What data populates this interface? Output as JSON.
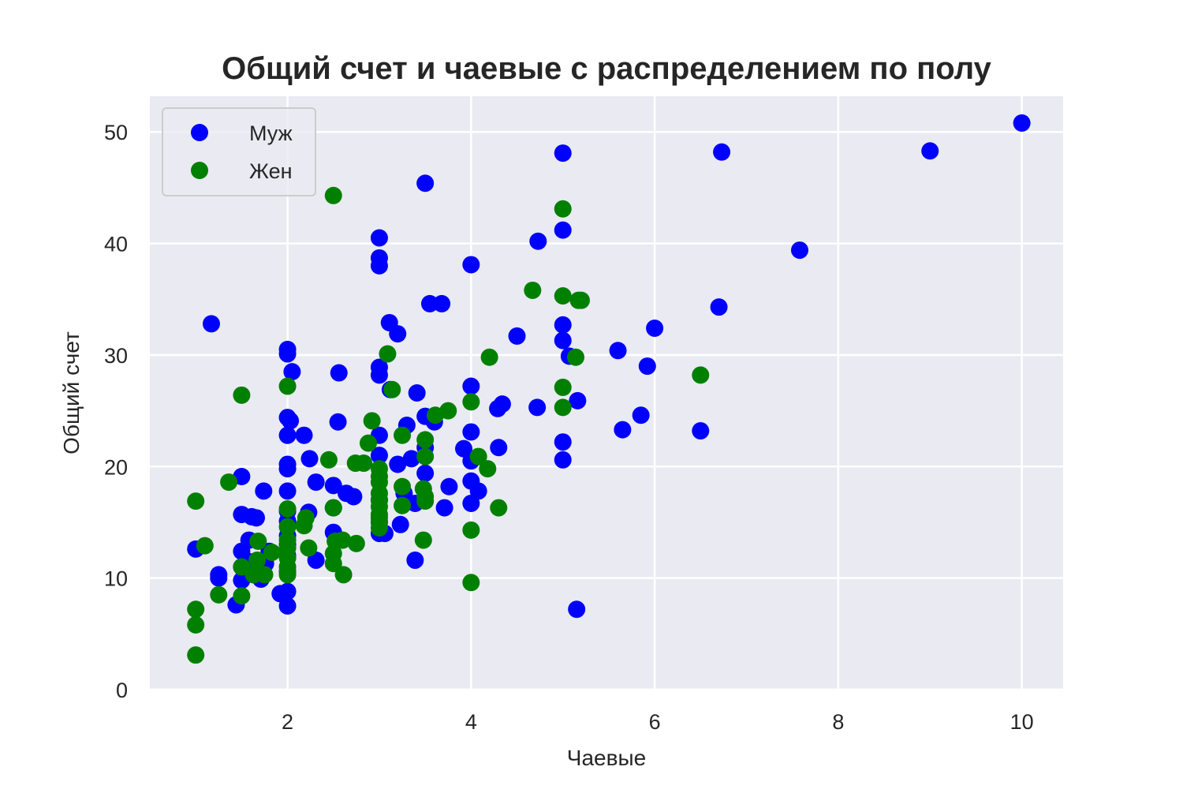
{
  "chart_data": {
    "type": "scatter",
    "title": "Общий счет и чаевые с распределением по полу",
    "xlabel": "Чаевые",
    "ylabel": "Общий счет",
    "xlim": [
      0.5,
      10.45
    ],
    "ylim": [
      0,
      53.2
    ],
    "xticks": [
      2,
      4,
      6,
      8,
      10
    ],
    "yticks": [
      0,
      10,
      20,
      30,
      40,
      50
    ],
    "grid": true,
    "legend_position": "top-left",
    "series": [
      {
        "name": "Муж",
        "color": "#0000ff",
        "points": [
          [
            10.0,
            50.8
          ],
          [
            9.0,
            48.3
          ],
          [
            6.73,
            48.2
          ],
          [
            5.0,
            48.1
          ],
          [
            3.5,
            45.4
          ],
          [
            7.58,
            39.4
          ],
          [
            4.73,
            40.2
          ],
          [
            5.0,
            41.2
          ],
          [
            3.0,
            40.5
          ],
          [
            3.0,
            38.7
          ],
          [
            3.0,
            38.0
          ],
          [
            4.0,
            38.1
          ],
          [
            3.55,
            34.6
          ],
          [
            3.68,
            34.6
          ],
          [
            6.7,
            34.3
          ],
          [
            1.17,
            32.8
          ],
          [
            3.11,
            32.9
          ],
          [
            5.0,
            32.7
          ],
          [
            6.0,
            32.4
          ],
          [
            3.2,
            31.9
          ],
          [
            4.5,
            31.7
          ],
          [
            5.0,
            31.3
          ],
          [
            5.6,
            30.4
          ],
          [
            2.0,
            30.5
          ],
          [
            2.0,
            30.1
          ],
          [
            5.07,
            29.9
          ],
          [
            5.92,
            29.0
          ],
          [
            3.0,
            28.9
          ],
          [
            2.05,
            28.5
          ],
          [
            2.56,
            28.4
          ],
          [
            3.0,
            28.2
          ],
          [
            4.0,
            27.2
          ],
          [
            3.12,
            26.9
          ],
          [
            3.41,
            26.6
          ],
          [
            5.16,
            25.9
          ],
          [
            4.34,
            25.6
          ],
          [
            4.29,
            25.2
          ],
          [
            4.72,
            25.3
          ],
          [
            5.85,
            24.6
          ],
          [
            3.5,
            24.5
          ],
          [
            2.0,
            24.4
          ],
          [
            2.03,
            24.1
          ],
          [
            2.55,
            24.0
          ],
          [
            3.6,
            24.0
          ],
          [
            3.3,
            23.7
          ],
          [
            5.65,
            23.3
          ],
          [
            6.5,
            23.2
          ],
          [
            4.0,
            23.1
          ],
          [
            2.0,
            22.8
          ],
          [
            3.0,
            22.8
          ],
          [
            2.18,
            22.8
          ],
          [
            5.0,
            22.2
          ],
          [
            3.5,
            21.7
          ],
          [
            3.92,
            21.6
          ],
          [
            4.3,
            21.7
          ],
          [
            3.0,
            21.0
          ],
          [
            2.24,
            20.7
          ],
          [
            3.35,
            20.7
          ],
          [
            5.0,
            20.6
          ],
          [
            4.0,
            20.5
          ],
          [
            2.0,
            20.2
          ],
          [
            2.0,
            19.8
          ],
          [
            3.2,
            20.2
          ],
          [
            3.5,
            19.4
          ],
          [
            1.5,
            19.1
          ],
          [
            2.31,
            18.6
          ],
          [
            4.0,
            18.7
          ],
          [
            3.76,
            18.2
          ],
          [
            2.5,
            18.3
          ],
          [
            1.74,
            17.8
          ],
          [
            2.0,
            17.8
          ],
          [
            4.08,
            17.8
          ],
          [
            2.64,
            17.6
          ],
          [
            2.72,
            17.3
          ],
          [
            3.27,
            17.6
          ],
          [
            3.0,
            17.0
          ],
          [
            4.0,
            16.7
          ],
          [
            3.39,
            16.7
          ],
          [
            3.71,
            16.3
          ],
          [
            2.0,
            16.0
          ],
          [
            2.23,
            15.9
          ],
          [
            2.5,
            16.3
          ],
          [
            1.5,
            15.7
          ],
          [
            1.61,
            15.5
          ],
          [
            1.66,
            15.4
          ],
          [
            2.0,
            15.1
          ],
          [
            3.0,
            15.0
          ],
          [
            3.23,
            14.8
          ],
          [
            2.5,
            14.1
          ],
          [
            3.0,
            14.0
          ],
          [
            3.06,
            14.0
          ],
          [
            2.0,
            13.8
          ],
          [
            1.58,
            13.4
          ],
          [
            2.0,
            13.0
          ],
          [
            1.8,
            12.4
          ],
          [
            1.5,
            12.4
          ],
          [
            2.0,
            12.0
          ],
          [
            1.0,
            12.6
          ],
          [
            2.31,
            11.6
          ],
          [
            1.57,
            11.5
          ],
          [
            1.76,
            11.3
          ],
          [
            3.39,
            11.6
          ],
          [
            1.5,
            11.0
          ],
          [
            2.0,
            10.6
          ],
          [
            1.25,
            10.3
          ],
          [
            1.25,
            10.0
          ],
          [
            1.71,
            9.9
          ],
          [
            1.5,
            9.8
          ],
          [
            1.66,
            10.3
          ],
          [
            2.0,
            8.8
          ],
          [
            1.92,
            8.6
          ],
          [
            1.44,
            7.6
          ],
          [
            2.0,
            7.5
          ],
          [
            5.15,
            7.2
          ]
        ]
      },
      {
        "name": "Жен",
        "color": "#008000",
        "points": [
          [
            2.5,
            44.3
          ],
          [
            5.0,
            43.1
          ],
          [
            4.67,
            35.8
          ],
          [
            5.0,
            35.3
          ],
          [
            5.17,
            34.9
          ],
          [
            5.2,
            34.9
          ],
          [
            3.09,
            30.1
          ],
          [
            4.2,
            29.8
          ],
          [
            5.14,
            29.8
          ],
          [
            6.5,
            28.2
          ],
          [
            2.0,
            27.2
          ],
          [
            5.0,
            27.1
          ],
          [
            3.14,
            26.9
          ],
          [
            1.5,
            26.4
          ],
          [
            4.0,
            25.8
          ],
          [
            5.0,
            25.3
          ],
          [
            3.75,
            25.0
          ],
          [
            3.61,
            24.6
          ],
          [
            2.92,
            24.1
          ],
          [
            3.25,
            22.8
          ],
          [
            3.5,
            22.4
          ],
          [
            2.88,
            22.1
          ],
          [
            4.08,
            20.9
          ],
          [
            3.5,
            20.9
          ],
          [
            2.45,
            20.6
          ],
          [
            2.74,
            20.3
          ],
          [
            2.83,
            20.3
          ],
          [
            4.18,
            19.8
          ],
          [
            3.0,
            19.8
          ],
          [
            3.0,
            19.1
          ],
          [
            3.0,
            18.6
          ],
          [
            1.36,
            18.6
          ],
          [
            3.25,
            18.2
          ],
          [
            3.48,
            18.0
          ],
          [
            3.0,
            17.6
          ],
          [
            3.5,
            17.3
          ],
          [
            3.0,
            17.0
          ],
          [
            1.0,
            16.9
          ],
          [
            3.5,
            16.9
          ],
          [
            3.25,
            16.5
          ],
          [
            3.0,
            16.4
          ],
          [
            4.3,
            16.3
          ],
          [
            2.0,
            16.2
          ],
          [
            2.5,
            16.3
          ],
          [
            3.0,
            15.7
          ],
          [
            2.2,
            15.4
          ],
          [
            3.0,
            15.4
          ],
          [
            3.0,
            15.0
          ],
          [
            2.0,
            14.6
          ],
          [
            2.18,
            14.7
          ],
          [
            3.0,
            14.5
          ],
          [
            4.0,
            14.3
          ],
          [
            2.0,
            13.4
          ],
          [
            3.48,
            13.4
          ],
          [
            1.68,
            13.3
          ],
          [
            2.52,
            13.3
          ],
          [
            2.75,
            13.1
          ],
          [
            2.6,
            13.4
          ],
          [
            1.1,
            12.9
          ],
          [
            2.23,
            12.7
          ],
          [
            2.0,
            12.7
          ],
          [
            1.83,
            12.3
          ],
          [
            2.5,
            12.2
          ],
          [
            2.0,
            11.8
          ],
          [
            2.5,
            11.3
          ],
          [
            1.67,
            11.6
          ],
          [
            1.5,
            11.0
          ],
          [
            2.0,
            11.0
          ],
          [
            2.0,
            10.6
          ],
          [
            1.75,
            10.3
          ],
          [
            2.0,
            10.3
          ],
          [
            1.63,
            10.3
          ],
          [
            2.61,
            10.3
          ],
          [
            4.0,
            9.6
          ],
          [
            1.25,
            8.5
          ],
          [
            1.5,
            8.4
          ],
          [
            1.0,
            7.2
          ],
          [
            1.0,
            5.8
          ],
          [
            1.0,
            3.1
          ]
        ]
      }
    ]
  }
}
